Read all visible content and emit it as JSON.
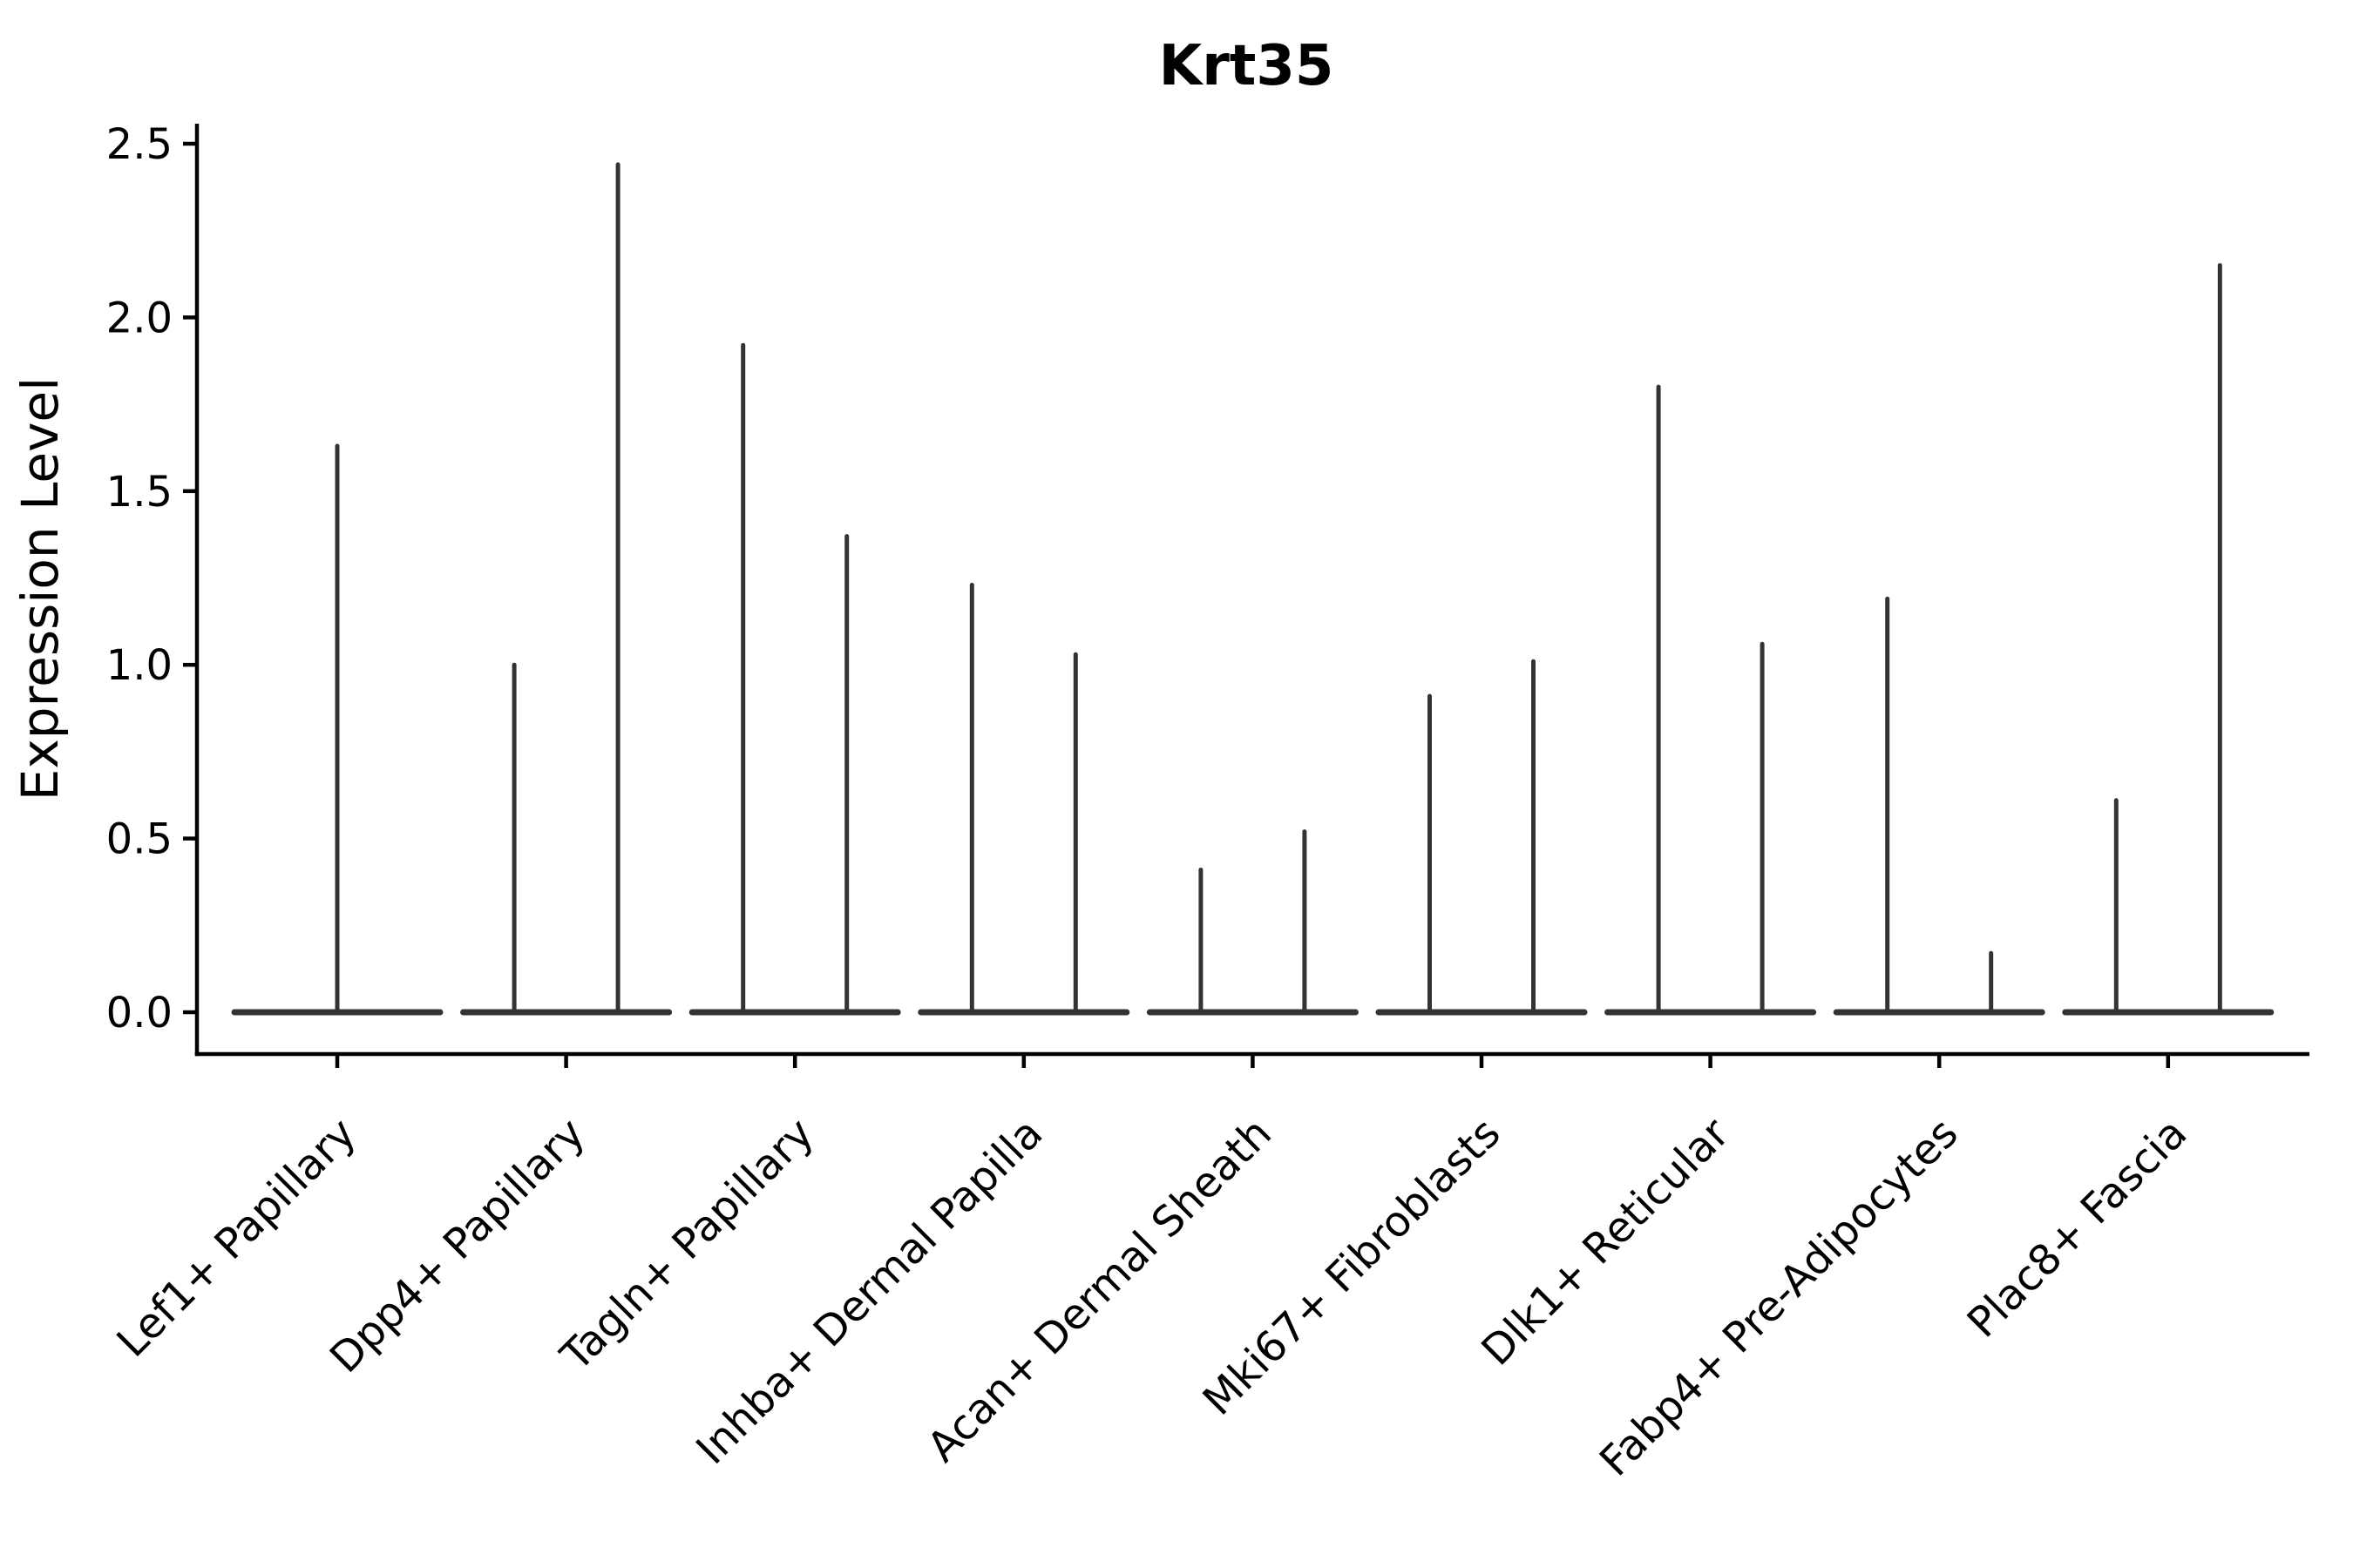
{
  "chart_data": {
    "type": "violin",
    "title": "Krt35",
    "ylabel": "Expression Level",
    "xlabel": "",
    "ylim": [
      -0.12,
      2.56
    ],
    "yticks": [
      0.0,
      0.5,
      1.0,
      1.5,
      2.0,
      2.5
    ],
    "ytick_labels": [
      "0.0",
      "0.5",
      "1.0",
      "1.5",
      "2.0",
      "2.5"
    ],
    "grid": false,
    "legend": null,
    "baseline_value": 0.0,
    "violin_color": "#333333",
    "axis_color": "#000000",
    "categories": [
      {
        "label": "Lef1+ Papillary",
        "spike_maxima": [
          1.63
        ]
      },
      {
        "label": "Dpp4+ Papillary",
        "spike_maxima": [
          1.0,
          2.44
        ]
      },
      {
        "label": "Tagln+ Papillary",
        "spike_maxima": [
          1.92,
          1.37
        ]
      },
      {
        "label": "Inhba+ Dermal Papilla",
        "spike_maxima": [
          1.23,
          1.03
        ]
      },
      {
        "label": "Acan+ Dermal Sheath",
        "spike_maxima": [
          0.41,
          0.52
        ]
      },
      {
        "label": "Mki67+ Fibroblasts",
        "spike_maxima": [
          0.91,
          1.01
        ]
      },
      {
        "label": "Dlk1+ Reticular",
        "spike_maxima": [
          1.8,
          1.06
        ]
      },
      {
        "label": "Fabp4+ Pre-Adipocytes",
        "spike_maxima": [
          1.19,
          0.17
        ]
      },
      {
        "label": "Plac8+ Fascia",
        "spike_maxima": [
          0.61,
          2.15
        ]
      }
    ]
  }
}
